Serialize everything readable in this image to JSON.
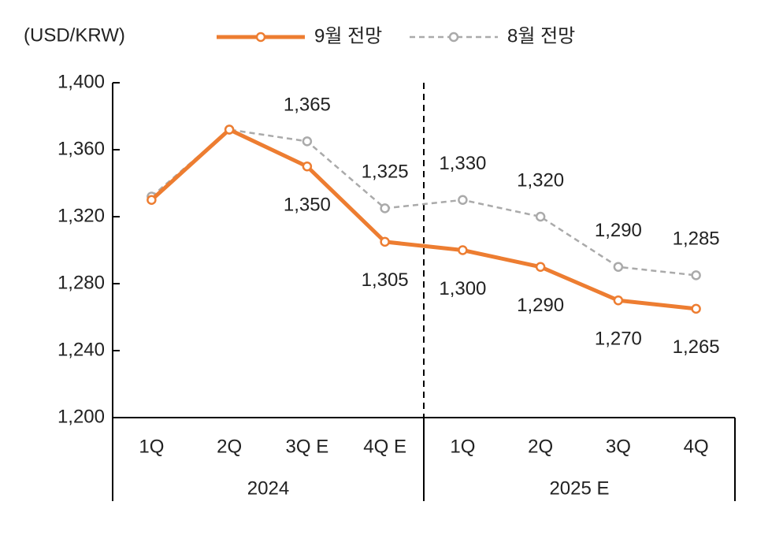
{
  "chart_data": {
    "type": "line",
    "y_label": "(USD/KRW)",
    "categories": [
      "1Q",
      "2Q",
      "3Q E",
      "4Q E",
      "1Q",
      "2Q",
      "3Q",
      "4Q"
    ],
    "groups": [
      "2024",
      "2025 E"
    ],
    "series": [
      {
        "name": "9월 전망",
        "color": "#ed7d31",
        "style": "solid",
        "values": [
          1330,
          1372,
          1350,
          1305,
          1300,
          1290,
          1270,
          1265
        ],
        "value_labels": [
          null,
          null,
          "1,350",
          "1,305",
          "1,300",
          "1,290",
          "1,270",
          "1,265"
        ]
      },
      {
        "name": "8월 전망",
        "color": "#aaaaaa",
        "style": "dashed",
        "values": [
          1332,
          1372,
          1365,
          1325,
          1330,
          1320,
          1290,
          1285
        ],
        "value_labels": [
          null,
          null,
          "1,365",
          "1,325",
          "1,330",
          "1,320",
          "1,290",
          "1,285"
        ]
      }
    ],
    "ylim": [
      1200,
      1400
    ],
    "yticks": [
      {
        "value": 1200,
        "label": "1,200"
      },
      {
        "value": 1240,
        "label": "1,240"
      },
      {
        "value": 1280,
        "label": "1,280"
      },
      {
        "value": 1320,
        "label": "1,320"
      },
      {
        "value": 1360,
        "label": "1,360"
      },
      {
        "value": 1400,
        "label": "1,400"
      }
    ]
  }
}
